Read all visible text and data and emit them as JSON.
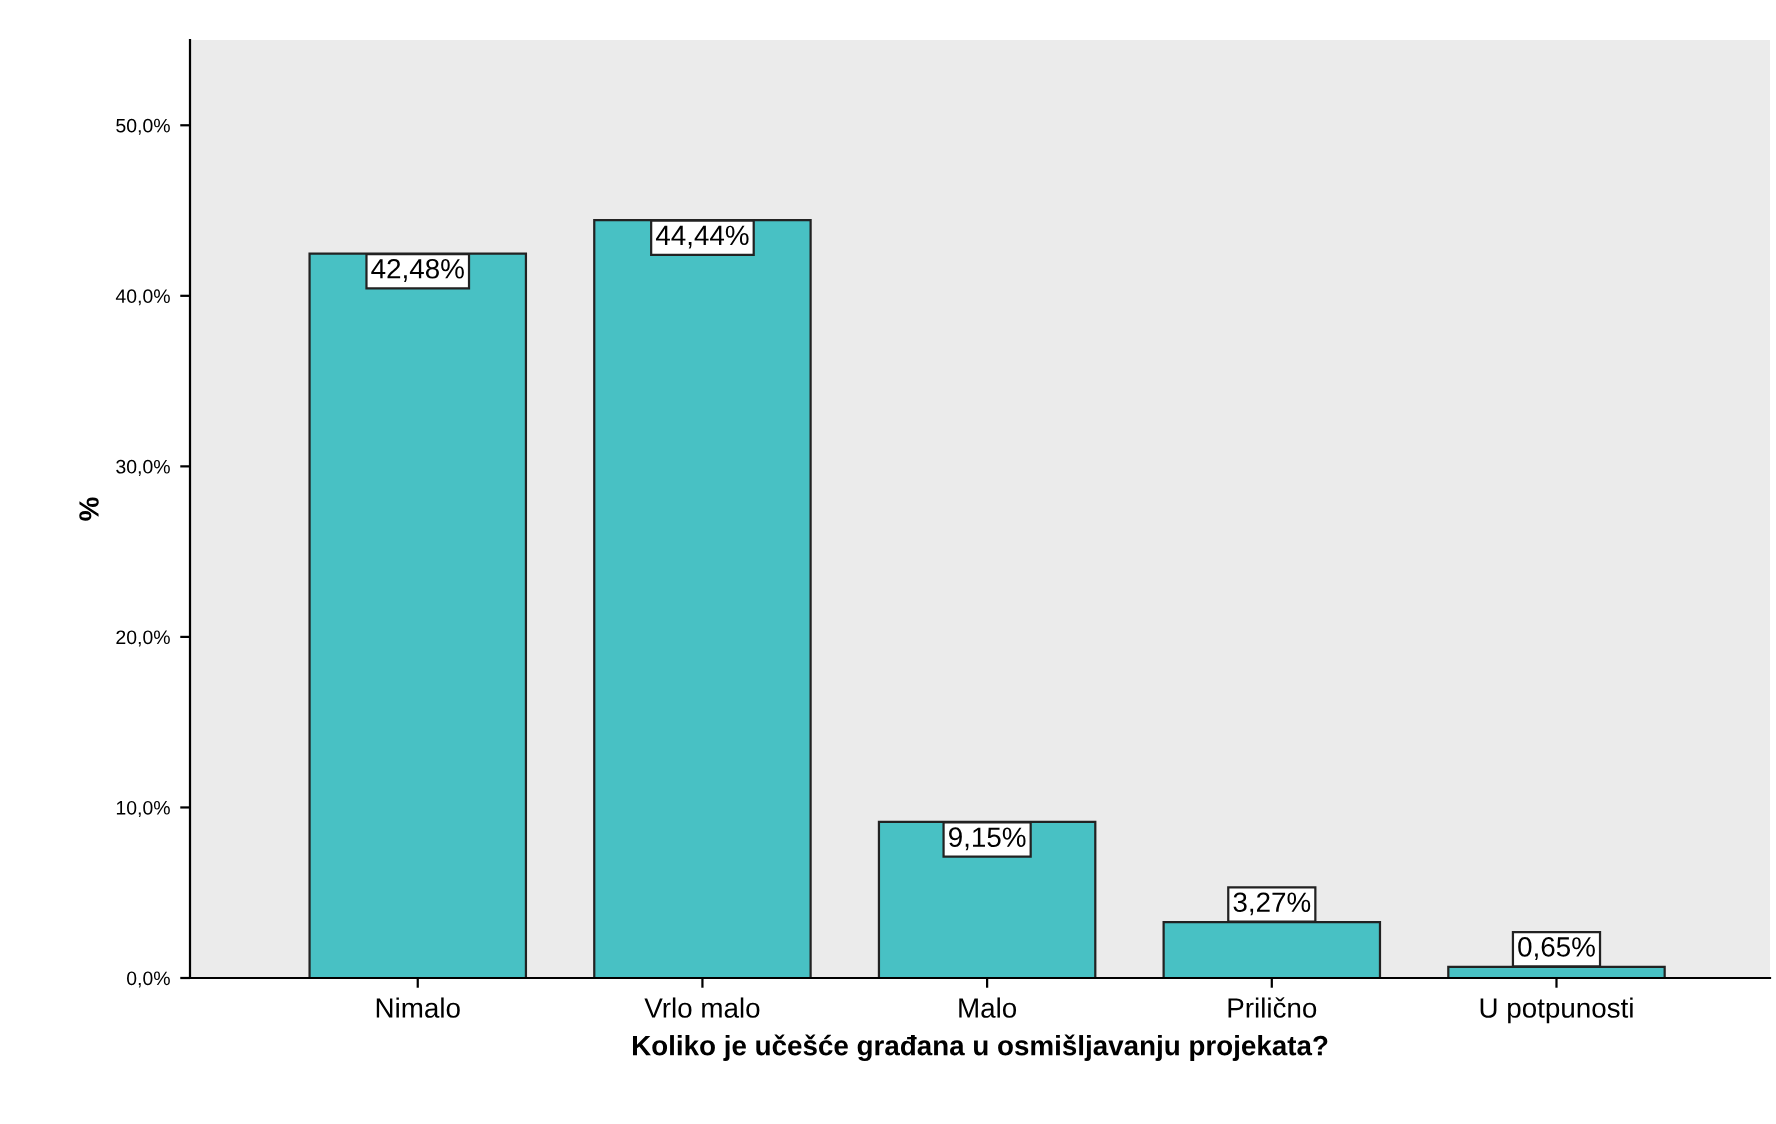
{
  "chart_data": {
    "type": "bar",
    "xlabel": "Koliko je učešće građana u osmišljavanju projekata?",
    "ylabel": "%",
    "categories": [
      "Nimalo",
      "Vrlo malo",
      "Malo",
      "Prilično",
      "U potpunosti"
    ],
    "values": [
      42.48,
      44.44,
      9.15,
      3.27,
      0.65
    ],
    "value_labels": [
      "42,48%",
      "44,44%",
      "9,15%",
      "3,27%",
      "0,65%"
    ],
    "color": "#48c1c4",
    "ylim": [
      0,
      55
    ],
    "yticks": [
      {
        "value": 0,
        "label": "0,0%"
      },
      {
        "value": 10,
        "label": "10,0%"
      },
      {
        "value": 20,
        "label": "20,0%"
      },
      {
        "value": 30,
        "label": "30,0%"
      },
      {
        "value": 40,
        "label": "40,0%"
      },
      {
        "value": 50,
        "label": "50,0%"
      }
    ],
    "grid": false,
    "legend": false
  }
}
